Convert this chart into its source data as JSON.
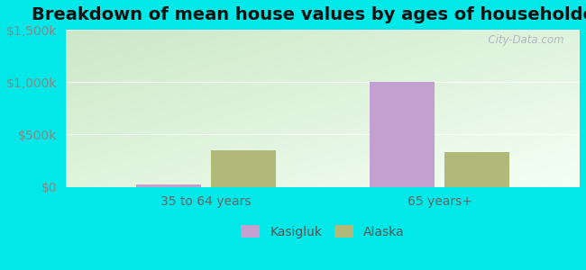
{
  "title": "Breakdown of mean house values by ages of householders",
  "categories": [
    "35 to 64 years",
    "65 years+"
  ],
  "kasigluk_values": [
    20000,
    1000000
  ],
  "alaska_values": [
    350000,
    330000
  ],
  "kasigluk_color": "#c4a0d0",
  "alaska_color": "#b0b87a",
  "ylim": [
    0,
    1500000
  ],
  "yticks": [
    0,
    500000,
    1000000,
    1500000
  ],
  "ytick_labels": [
    "$0",
    "$500k",
    "$1,000k",
    "$1,500k"
  ],
  "background_outer": "#00e8e8",
  "bg_top_left": "#eaf5e8",
  "bg_top_right": "#f5faf5",
  "bg_bottom_left": "#cce8cc",
  "bg_bottom_right": "#e8f5e8",
  "bar_width": 0.28,
  "legend_kasigluk": "Kasigluk",
  "legend_alaska": "Alaska",
  "watermark": "  City-Data.com",
  "title_fontsize": 14,
  "tick_fontsize": 10,
  "legend_fontsize": 10
}
